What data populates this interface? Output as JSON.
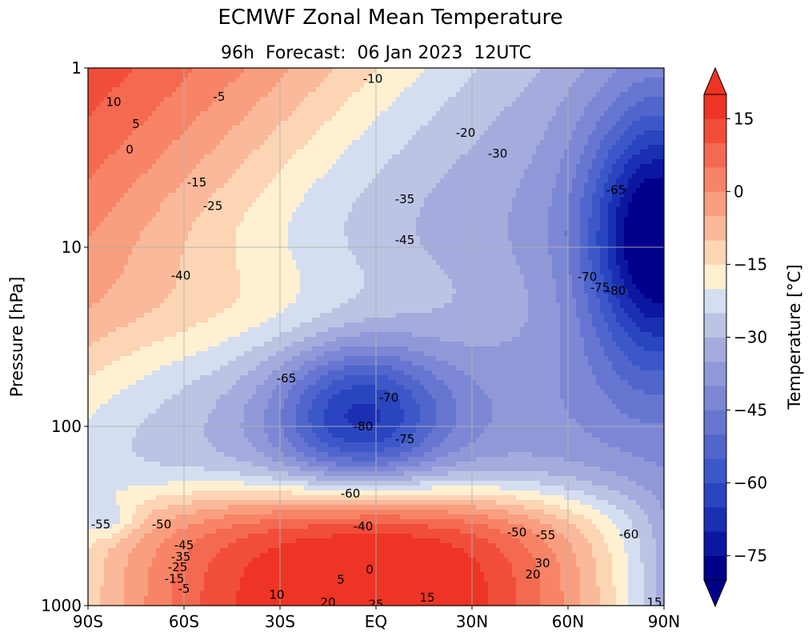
{
  "chart_data": {
    "type": "contourf",
    "title": "ECMWF Zonal Mean Temperature",
    "subtitle": "96h  Forecast:  06 Jan 2023  12UTC",
    "xlabel": "",
    "ylabel": "Pressure [hPa]",
    "colorbar_label": "Temperature [°C]",
    "x_scale": "linear",
    "y_scale": "log",
    "y_inverted": true,
    "xlim": [
      -90,
      90
    ],
    "ylim": [
      1000,
      1
    ],
    "grid": true,
    "x_ticks": [
      {
        "value": -90,
        "label": "90S"
      },
      {
        "value": -60,
        "label": "60S"
      },
      {
        "value": -30,
        "label": "30S"
      },
      {
        "value": 0,
        "label": "EQ"
      },
      {
        "value": 30,
        "label": "30N"
      },
      {
        "value": 60,
        "label": "60N"
      },
      {
        "value": 90,
        "label": "90N"
      }
    ],
    "y_ticks": [
      {
        "value": 1,
        "label": "1"
      },
      {
        "value": 10,
        "label": "10"
      },
      {
        "value": 100,
        "label": "100"
      },
      {
        "value": 1000,
        "label": "1000"
      }
    ],
    "colorbar": {
      "range": [
        -80,
        20
      ],
      "step": 5,
      "extend": "both",
      "ticks": [
        {
          "value": 15,
          "label": "15"
        },
        {
          "value": 0,
          "label": "0"
        },
        {
          "value": -15,
          "label": "−15"
        },
        {
          "value": -30,
          "label": "−30"
        },
        {
          "value": -45,
          "label": "−45"
        },
        {
          "value": -60,
          "label": "−60"
        },
        {
          "value": -75,
          "label": "−75"
        }
      ],
      "colors": [
        "#00008b",
        "#0b17a0",
        "#1a2fb2",
        "#2a45c0",
        "#3c58c8",
        "#5066cc",
        "#6676d0",
        "#7c87d5",
        "#9098d8",
        "#a5acdd",
        "#bcc4e4",
        "#d4def0",
        "#fff0d2",
        "#fcd5b5",
        "#fab99a",
        "#f99e7e",
        "#f78466",
        "#f46a50",
        "#f14e3a",
        "#ee3424"
      ]
    },
    "contour_labels": [
      {
        "x": -82,
        "p": 1.55,
        "text": "10"
      },
      {
        "x": -75,
        "p": 2.05,
        "text": "5"
      },
      {
        "x": -77,
        "p": 2.85,
        "text": "0"
      },
      {
        "x": -49,
        "p": 1.45,
        "text": "-5"
      },
      {
        "x": -56,
        "p": 4.35,
        "text": "-15"
      },
      {
        "x": -51,
        "p": 5.9,
        "text": "-25"
      },
      {
        "x": -1,
        "p": 1.15,
        "text": "-10"
      },
      {
        "x": 28,
        "p": 2.3,
        "text": "-20"
      },
      {
        "x": 38,
        "p": 3.0,
        "text": "-30"
      },
      {
        "x": 9,
        "p": 5.4,
        "text": "-35"
      },
      {
        "x": 9,
        "p": 9.1,
        "text": "-45"
      },
      {
        "x": -61,
        "p": 14.4,
        "text": "-40"
      },
      {
        "x": 75,
        "p": 4.8,
        "text": "-65"
      },
      {
        "x": 66,
        "p": 14.6,
        "text": "-70"
      },
      {
        "x": 70,
        "p": 16.8,
        "text": "-75"
      },
      {
        "x": 75,
        "p": 17.5,
        "text": "-80"
      },
      {
        "x": -28,
        "p": 54,
        "text": "-65"
      },
      {
        "x": 4,
        "p": 69,
        "text": "-70"
      },
      {
        "x": -4,
        "p": 100,
        "text": "-80"
      },
      {
        "x": 9,
        "p": 118,
        "text": "-75"
      },
      {
        "x": -8,
        "p": 237,
        "text": "-60"
      },
      {
        "x": -4,
        "p": 362,
        "text": "-40"
      },
      {
        "x": 44,
        "p": 390,
        "text": "-50"
      },
      {
        "x": 53,
        "p": 405,
        "text": "-55"
      },
      {
        "x": 79,
        "p": 400,
        "text": "-60"
      },
      {
        "x": -86,
        "p": 352,
        "text": "-55"
      },
      {
        "x": -67,
        "p": 352,
        "text": "-50"
      },
      {
        "x": -60,
        "p": 460,
        "text": "-45"
      },
      {
        "x": -61,
        "p": 535,
        "text": "-35"
      },
      {
        "x": -62,
        "p": 610,
        "text": "-25"
      },
      {
        "x": -63,
        "p": 710,
        "text": "-15"
      },
      {
        "x": -60,
        "p": 805,
        "text": "-5"
      },
      {
        "x": -2,
        "p": 630,
        "text": "0"
      },
      {
        "x": -11,
        "p": 715,
        "text": "5"
      },
      {
        "x": -31,
        "p": 870,
        "text": "10"
      },
      {
        "x": -15,
        "p": 960,
        "text": "20"
      },
      {
        "x": 0,
        "p": 985,
        "text": "25"
      },
      {
        "x": 16,
        "p": 900,
        "text": "15"
      },
      {
        "x": 52,
        "p": 580,
        "text": "30"
      },
      {
        "x": 49,
        "p": 670,
        "text": "20"
      },
      {
        "x": 87,
        "p": 960,
        "text": "15"
      }
    ]
  }
}
